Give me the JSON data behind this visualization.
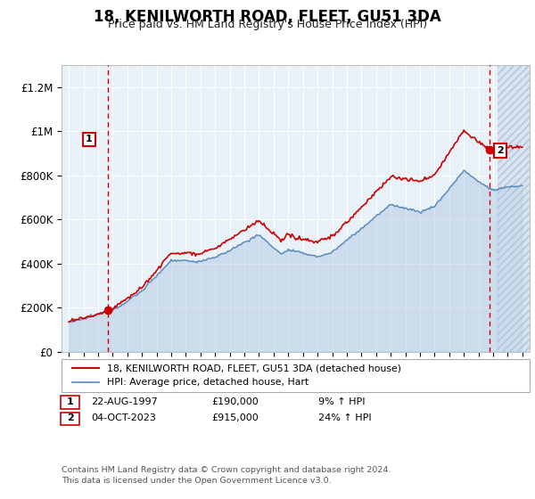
{
  "title": "18, KENILWORTH ROAD, FLEET, GU51 3DA",
  "subtitle": "Price paid vs. HM Land Registry's House Price Index (HPI)",
  "ylabel_ticks": [
    "£0",
    "£200K",
    "£400K",
    "£600K",
    "£800K",
    "£1M",
    "£1.2M"
  ],
  "ytick_vals": [
    0,
    200000,
    400000,
    600000,
    800000,
    1000000,
    1200000
  ],
  "ylim": [
    0,
    1300000
  ],
  "xlim_start": 1994.5,
  "xlim_end": 2026.5,
  "sale1_year": 1997.65,
  "sale1_price": 190000,
  "sale1_label": "1",
  "sale2_year": 2023.75,
  "sale2_price": 915000,
  "sale2_label": "2",
  "red_color": "#cc0000",
  "blue_color": "#5588bb",
  "plot_bg": "#e8f0f8",
  "hatch_start": 2024.3,
  "footer": "Contains HM Land Registry data © Crown copyright and database right 2024.\nThis data is licensed under the Open Government Licence v3.0.",
  "legend_line1": "18, KENILWORTH ROAD, FLEET, GU51 3DA (detached house)",
  "legend_line2": "HPI: Average price, detached house, Hart",
  "table_data": [
    [
      "1",
      "22-AUG-1997",
      "£190,000",
      "9% ↑ HPI"
    ],
    [
      "2",
      "04-OCT-2023",
      "£915,000",
      "24% ↑ HPI"
    ]
  ]
}
